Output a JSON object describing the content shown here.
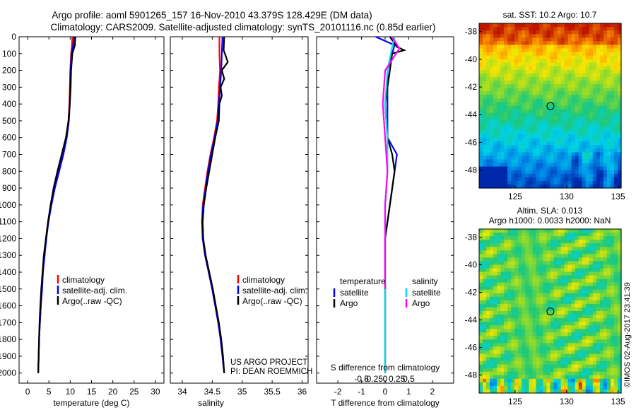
{
  "title_line1": "Argo profile: aoml 5901265_157 16-Nov-2010 43.379S 128.429E (DM data)",
  "title_line2": "Climatology: CARS2009. Satellite-adjusted climatology: synTS_20101116.nc (0.85d earlier)",
  "depth_ticks": [
    "0",
    "100",
    "200",
    "300",
    "400",
    "500",
    "600",
    "700",
    "800",
    "900",
    "1000",
    "1100",
    "1200",
    "1300",
    "1400",
    "1500",
    "1600",
    "1700",
    "1800",
    "1900",
    "2000"
  ],
  "side_stamp": "©IMOS 02-Aug-2017 23:41:39",
  "colors": {
    "climatology": "#ff0000",
    "satellite": "#0000ff",
    "argo": "#000000",
    "salinity_satellite": "#00e0e0",
    "salinity_argo": "#ff00ff"
  },
  "chart_data": [
    {
      "type": "line",
      "name": "temperature",
      "xlabel": "temperature (deg C)",
      "ylabel": "depth",
      "xlim": [
        -2,
        32
      ],
      "ylim": [
        2060,
        0
      ],
      "xticks": [
        0,
        5,
        10,
        15,
        20,
        25,
        30
      ],
      "xtick_labels": [
        "0",
        "5",
        "10",
        "15",
        "20",
        "25",
        "30"
      ],
      "legend": [
        "climatology",
        "satellite-adj. clim.",
        "Argo(..raw -QC)"
      ],
      "series": [
        {
          "name": "climatology",
          "color": "#ff0000",
          "points": [
            [
              10.5,
              0
            ],
            [
              10.4,
              50
            ],
            [
              10.2,
              100
            ],
            [
              10.0,
              200
            ],
            [
              9.9,
              300
            ],
            [
              9.8,
              400
            ],
            [
              9.6,
              500
            ],
            [
              9.1,
              600
            ],
            [
              8.3,
              700
            ],
            [
              7.3,
              800
            ],
            [
              6.3,
              900
            ],
            [
              5.5,
              1000
            ],
            [
              4.8,
              1100
            ],
            [
              4.3,
              1200
            ],
            [
              3.9,
              1300
            ],
            [
              3.6,
              1400
            ],
            [
              3.3,
              1500
            ],
            [
              3.1,
              1600
            ],
            [
              2.9,
              1700
            ],
            [
              2.7,
              1800
            ],
            [
              2.6,
              1900
            ],
            [
              2.5,
              2000
            ]
          ]
        },
        {
          "name": "satellite-adj. clim.",
          "color": "#0000ff",
          "points": [
            [
              10.9,
              0
            ],
            [
              10.7,
              50
            ],
            [
              10.3,
              100
            ],
            [
              10.1,
              200
            ],
            [
              10.0,
              300
            ],
            [
              9.9,
              400
            ],
            [
              9.7,
              500
            ],
            [
              9.2,
              600
            ],
            [
              8.4,
              700
            ],
            [
              7.4,
              800
            ],
            [
              6.4,
              900
            ],
            [
              5.6,
              1000
            ],
            [
              4.9,
              1100
            ],
            [
              4.4,
              1200
            ],
            [
              4.0,
              1300
            ],
            [
              3.6,
              1400
            ],
            [
              3.4,
              1500
            ],
            [
              3.1,
              1600
            ],
            [
              2.9,
              1700
            ],
            [
              2.7,
              1800
            ],
            [
              2.6,
              1900
            ],
            [
              2.5,
              2000
            ]
          ]
        },
        {
          "name": "Argo(..raw -QC)",
          "color": "#000000",
          "points": [
            [
              11.2,
              0
            ],
            [
              11.1,
              50
            ],
            [
              10.5,
              100
            ],
            [
              10.2,
              200
            ],
            [
              10.1,
              300
            ],
            [
              9.9,
              400
            ],
            [
              9.6,
              500
            ],
            [
              9.0,
              600
            ],
            [
              8.0,
              700
            ],
            [
              7.0,
              800
            ],
            [
              6.1,
              900
            ],
            [
              5.4,
              1000
            ],
            [
              4.8,
              1100
            ],
            [
              4.3,
              1200
            ],
            [
              3.8,
              1300
            ],
            [
              3.5,
              1400
            ],
            [
              3.2,
              1500
            ],
            [
              3.0,
              1600
            ],
            [
              2.8,
              1700
            ],
            [
              2.7,
              1800
            ],
            [
              2.6,
              1900
            ],
            [
              2.5,
              2000
            ]
          ]
        }
      ]
    },
    {
      "type": "line",
      "name": "salinity",
      "xlabel": "salinity",
      "ylabel": "depth",
      "xlim": [
        33.8,
        36.1
      ],
      "ylim": [
        2060,
        0
      ],
      "xticks": [
        34,
        34.5,
        35,
        35.5,
        36
      ],
      "xtick_labels": [
        "34",
        "34.5",
        "35",
        "35.5",
        "36"
      ],
      "legend": [
        "climatology",
        "satellite-adj. clim.",
        "Argo(..raw -QC)"
      ],
      "annotation": [
        "US ARGO PROJECT",
        "PI: DEAN ROEMMICH"
      ],
      "series": [
        {
          "name": "climatology",
          "color": "#ff0000",
          "points": [
            [
              34.62,
              0
            ],
            [
              34.62,
              100
            ],
            [
              34.63,
              200
            ],
            [
              34.61,
              300
            ],
            [
              34.6,
              400
            ],
            [
              34.58,
              500
            ],
            [
              34.53,
              600
            ],
            [
              34.47,
              700
            ],
            [
              34.42,
              800
            ],
            [
              34.38,
              900
            ],
            [
              34.34,
              1000
            ],
            [
              34.33,
              1100
            ],
            [
              34.34,
              1200
            ],
            [
              34.38,
              1300
            ],
            [
              34.44,
              1400
            ],
            [
              34.5,
              1500
            ],
            [
              34.55,
              1600
            ],
            [
              34.6,
              1700
            ],
            [
              34.64,
              1800
            ],
            [
              34.67,
              1900
            ],
            [
              34.7,
              2000
            ]
          ]
        },
        {
          "name": "satellite-adj. clim.",
          "color": "#0000ff",
          "points": [
            [
              34.67,
              0
            ],
            [
              34.66,
              100
            ],
            [
              34.65,
              200
            ],
            [
              34.63,
              300
            ],
            [
              34.61,
              400
            ],
            [
              34.59,
              500
            ],
            [
              34.54,
              600
            ],
            [
              34.48,
              700
            ],
            [
              34.43,
              800
            ],
            [
              34.39,
              900
            ],
            [
              34.35,
              1000
            ],
            [
              34.33,
              1100
            ],
            [
              34.34,
              1200
            ],
            [
              34.38,
              1300
            ],
            [
              34.44,
              1400
            ],
            [
              34.5,
              1500
            ],
            [
              34.55,
              1600
            ],
            [
              34.6,
              1700
            ],
            [
              34.64,
              1800
            ],
            [
              34.67,
              1900
            ],
            [
              34.7,
              2000
            ]
          ]
        },
        {
          "name": "Argo(..raw -QC)",
          "color": "#000000",
          "points": [
            [
              34.7,
              0
            ],
            [
              34.69,
              80
            ],
            [
              34.76,
              150
            ],
            [
              34.66,
              200
            ],
            [
              34.7,
              250
            ],
            [
              34.64,
              300
            ],
            [
              34.66,
              350
            ],
            [
              34.62,
              400
            ],
            [
              34.61,
              500
            ],
            [
              34.55,
              600
            ],
            [
              34.5,
              700
            ],
            [
              34.45,
              800
            ],
            [
              34.4,
              900
            ],
            [
              34.36,
              1000
            ],
            [
              34.34,
              1100
            ],
            [
              34.35,
              1200
            ],
            [
              34.39,
              1300
            ],
            [
              34.45,
              1400
            ],
            [
              34.51,
              1500
            ],
            [
              34.56,
              1600
            ],
            [
              34.61,
              1700
            ],
            [
              34.65,
              1800
            ],
            [
              34.68,
              1900
            ],
            [
              34.7,
              2000
            ]
          ]
        }
      ]
    },
    {
      "type": "line",
      "name": "difference",
      "xlabel": "T difference from climatology",
      "xlabel2": "S difference from climatology",
      "ylabel": "depth",
      "xlim": [
        -2.9,
        2.9
      ],
      "ylim": [
        2060,
        0
      ],
      "xticks": [
        -2,
        -1,
        0,
        1,
        2
      ],
      "xtick_labels": [
        "-2",
        "-1",
        "0",
        "1",
        "2"
      ],
      "sticks": [
        -1,
        -0.5,
        0,
        0.5,
        1
      ],
      "stick_labels": [
        "-0.5",
        "-0.25",
        "0",
        "0.25",
        "0.5"
      ],
      "legend_titles": [
        "temperature",
        "salinity"
      ],
      "legend": [
        "satellite",
        "Argo",
        "satellite",
        "Argo"
      ],
      "series": [
        {
          "name": "temperature satellite",
          "color": "#0000ff",
          "points": [
            [
              -0.4,
              0
            ],
            [
              0.4,
              50
            ],
            [
              0.3,
              100
            ],
            [
              0.1,
              200
            ],
            [
              0.1,
              400
            ],
            [
              0.1,
              600
            ],
            [
              0.5,
              700
            ],
            [
              0.4,
              800
            ],
            [
              0.2,
              1000
            ],
            [
              0.0,
              1200
            ],
            [
              0.0,
              2000
            ]
          ]
        },
        {
          "name": "temperature Argo",
          "color": "#000000",
          "points": [
            [
              0.2,
              0
            ],
            [
              0.5,
              60
            ],
            [
              0.8,
              80
            ],
            [
              0.3,
              100
            ],
            [
              0.2,
              200
            ],
            [
              0.0,
              400
            ],
            [
              0.1,
              600
            ],
            [
              0.3,
              700
            ],
            [
              0.4,
              800
            ],
            [
              0.2,
              1000
            ],
            [
              0.0,
              1200
            ],
            [
              0.0,
              2000
            ]
          ]
        },
        {
          "name": "salinity satellite",
          "color": "#00e0e0",
          "points": [
            [
              0.4,
              0
            ],
            [
              0.3,
              60
            ],
            [
              0.1,
              200
            ],
            [
              0.0,
              400
            ],
            [
              0.1,
              600
            ],
            [
              0.1,
              800
            ],
            [
              0.0,
              1000
            ],
            [
              0.0,
              1200
            ],
            [
              0.0,
              2000
            ]
          ]
        },
        {
          "name": "salinity Argo",
          "color": "#ff00ff",
          "points": [
            [
              0.3,
              0
            ],
            [
              0.6,
              70
            ],
            [
              0.0,
              200
            ],
            [
              -0.1,
              400
            ],
            [
              0.0,
              600
            ],
            [
              0.1,
              800
            ],
            [
              0.0,
              1000
            ],
            [
              0.0,
              1200
            ],
            [
              0.0,
              1500
            ]
          ]
        }
      ]
    },
    {
      "type": "heatmap",
      "name": "sst_map",
      "title": "sat. SST: 10.2 Argo: 10.7",
      "xlim": [
        121.5,
        135.3
      ],
      "ylim": [
        -49.3,
        -37.4
      ],
      "xticks": [
        125,
        130,
        135
      ],
      "xtick_labels": [
        "125",
        "130",
        "135"
      ],
      "yticks": [
        -38,
        -40,
        -42,
        -44,
        -46,
        -48
      ],
      "ytick_labels": [
        "-38",
        "-40",
        "-42",
        "-44",
        "-46",
        "-48"
      ],
      "marker": [
        128.429,
        -43.379
      ]
    },
    {
      "type": "heatmap",
      "name": "sla_map",
      "title": "Altim. SLA: 0.013",
      "subtitle": "Argo h1000: 0.0033 h2000: NaN",
      "xlim": [
        121.5,
        135.3
      ],
      "ylim": [
        -49.3,
        -37.4
      ],
      "xticks": [
        125,
        130,
        135
      ],
      "xtick_labels": [
        "125",
        "130",
        "135"
      ],
      "yticks": [
        -38,
        -40,
        -42,
        -44,
        -46,
        -48
      ],
      "ytick_labels": [
        "-38",
        "-40",
        "-42",
        "-44",
        "-46",
        "-48"
      ],
      "marker": [
        128.429,
        -43.379
      ]
    }
  ]
}
